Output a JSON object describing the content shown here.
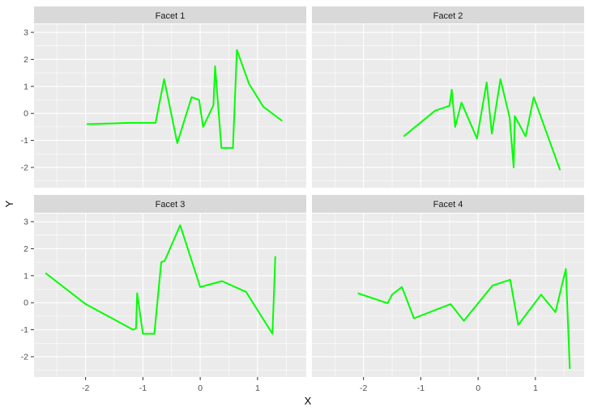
{
  "chart_data": {
    "type": "line",
    "layout": "facet_wrap 2x2",
    "xlabel": "X",
    "ylabel": "Y",
    "xlim": [
      -2.9,
      1.85
    ],
    "ylim": [
      -2.75,
      3.3
    ],
    "x_ticks": [
      -2,
      -1,
      0,
      1
    ],
    "y_ticks": [
      -2,
      -1,
      0,
      1,
      2,
      3
    ],
    "grid": true,
    "legend": "none",
    "line_color": "#00ff00",
    "panel_background": "#ebebeb",
    "strip_background": "#d9d9d9",
    "facets": [
      {
        "title": "Facet 1",
        "x": [
          -1.98,
          -1.5,
          -1.25,
          -0.78,
          -0.63,
          -0.4,
          -0.15,
          -0.02,
          0.05,
          0.23,
          0.26,
          0.37,
          0.57,
          0.64,
          0.85,
          1.1,
          1.43
        ],
        "y": [
          -0.4,
          -0.37,
          -0.35,
          -0.35,
          1.27,
          -1.1,
          0.6,
          0.5,
          -0.5,
          0.3,
          1.75,
          -1.28,
          -1.28,
          2.35,
          1.1,
          0.25,
          -0.28
        ]
      },
      {
        "title": "Facet 2",
        "x": [
          -1.3,
          -0.75,
          -0.5,
          -0.46,
          -0.4,
          -0.29,
          -0.02,
          0.15,
          0.24,
          0.39,
          0.55,
          0.62,
          0.64,
          0.83,
          0.97,
          1.43
        ],
        "y": [
          -0.85,
          0.1,
          0.28,
          0.88,
          -0.5,
          0.4,
          -0.93,
          1.15,
          -0.75,
          1.27,
          -0.15,
          -2.0,
          -0.1,
          -0.85,
          0.6,
          -2.1
        ]
      },
      {
        "title": "Facet 3",
        "x": [
          -2.7,
          -2.0,
          -1.17,
          -1.12,
          -1.1,
          -1.0,
          -0.8,
          -0.68,
          -0.62,
          -0.35,
          0.0,
          0.38,
          0.8,
          1.26,
          1.31
        ],
        "y": [
          1.1,
          -0.05,
          -1.0,
          -0.95,
          0.35,
          -1.15,
          -1.15,
          1.5,
          1.55,
          2.87,
          0.58,
          0.8,
          0.4,
          -1.15,
          1.72
        ]
      },
      {
        "title": "Facet 4",
        "x": [
          -2.1,
          -1.58,
          -1.5,
          -1.33,
          -1.12,
          -0.48,
          -0.25,
          0.25,
          0.56,
          0.7,
          1.1,
          1.35,
          1.53,
          1.6
        ],
        "y": [
          0.35,
          -0.02,
          0.3,
          0.58,
          -0.58,
          -0.05,
          -0.67,
          0.63,
          0.85,
          -0.82,
          0.3,
          -0.35,
          1.25,
          -2.45
        ]
      }
    ]
  }
}
